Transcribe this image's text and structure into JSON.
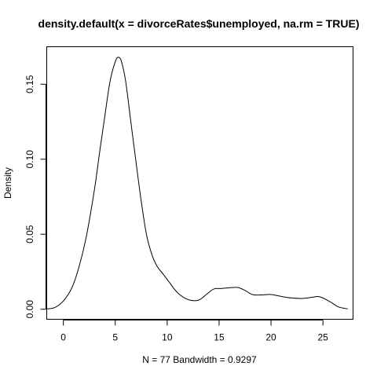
{
  "chart_data": {
    "type": "line",
    "title": "density.default(x = divorceRates$unemployed, na.rm = TRUE)",
    "xlabel": "N = 77   Bandwidth = 0.9297",
    "ylabel": "Density",
    "xlim": [
      -1.6,
      27.9
    ],
    "ylim": [
      -0.0067,
      0.175
    ],
    "x_ticks": [
      0,
      5,
      10,
      15,
      20,
      25
    ],
    "x_tick_labels": [
      "0",
      "5",
      "10",
      "15",
      "20",
      "25"
    ],
    "y_ticks": [
      0.0,
      0.05,
      0.1,
      0.15
    ],
    "y_tick_labels": [
      "0.00",
      "0.05",
      "0.10",
      "0.15"
    ],
    "grid": false,
    "series": [
      {
        "x": [
          -1.6,
          -0.8,
          0.0,
          0.8,
          1.5,
          2.2,
          3.0,
          3.5,
          4.0,
          4.5,
          5.0,
          5.3,
          5.6,
          6.0,
          6.5,
          7.0,
          7.5,
          8.0,
          8.5,
          9.0,
          9.6,
          10.2,
          11.0,
          12.0,
          13.0,
          13.8,
          14.5,
          15.2,
          16.0,
          16.8,
          17.5,
          18.2,
          19.0,
          20.0,
          21.0,
          22.0,
          23.0,
          24.0,
          24.5,
          25.0,
          25.8,
          26.5,
          27.4
        ],
        "y": [
          0.0002,
          0.0012,
          0.0055,
          0.014,
          0.028,
          0.048,
          0.08,
          0.105,
          0.129,
          0.152,
          0.165,
          0.168,
          0.165,
          0.152,
          0.125,
          0.098,
          0.072,
          0.05,
          0.037,
          0.029,
          0.0235,
          0.018,
          0.011,
          0.0065,
          0.006,
          0.01,
          0.0135,
          0.0138,
          0.0143,
          0.0145,
          0.0125,
          0.0098,
          0.0095,
          0.0098,
          0.0085,
          0.0075,
          0.0072,
          0.008,
          0.0085,
          0.0075,
          0.0045,
          0.0015,
          0.0002
        ]
      }
    ]
  }
}
